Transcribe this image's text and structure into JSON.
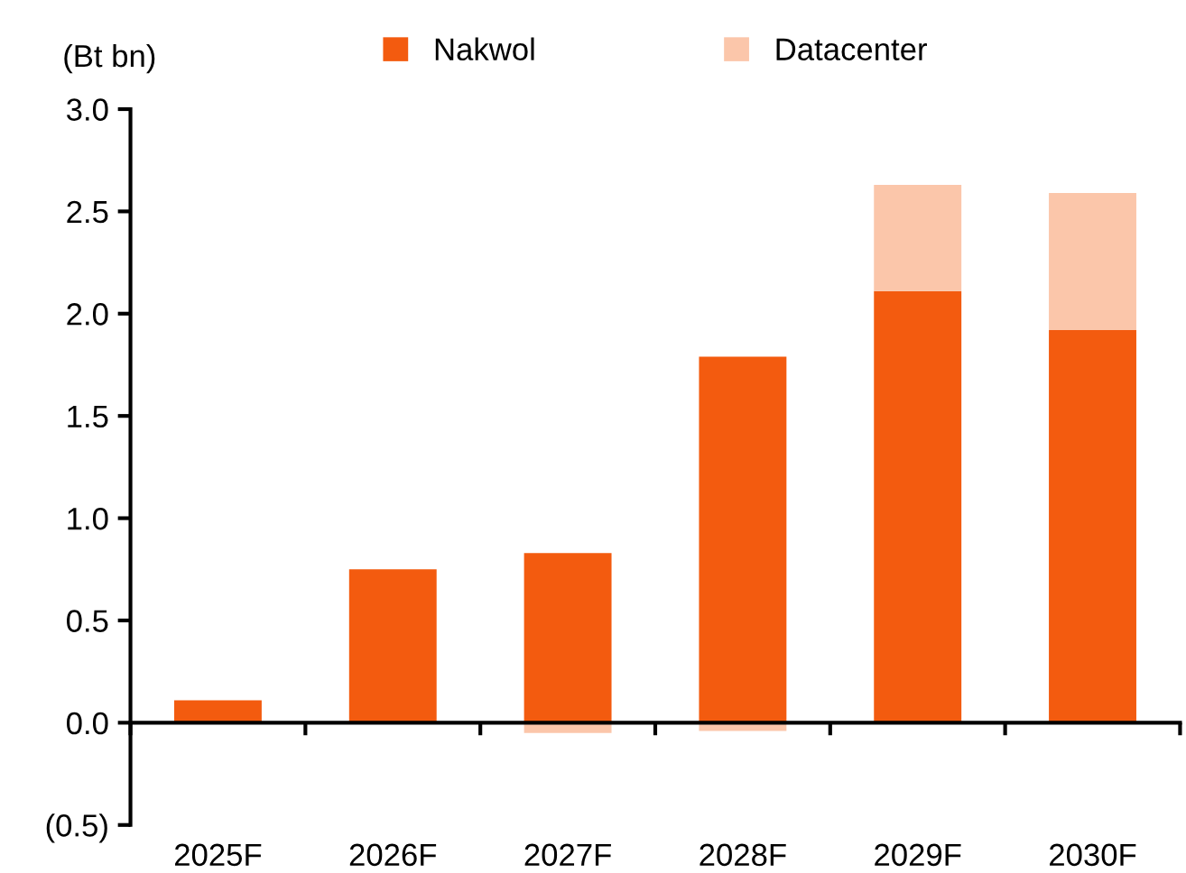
{
  "chart_data": {
    "type": "bar",
    "stacked": true,
    "ylabel": "(Bt bn)",
    "categories": [
      "2025F",
      "2026F",
      "2027F",
      "2028F",
      "2029F",
      "2030F"
    ],
    "series": [
      {
        "name": "Nakwol",
        "color": "#f35b0f",
        "values": [
          0.11,
          0.75,
          0.83,
          1.79,
          2.11,
          1.92
        ]
      },
      {
        "name": "Datacenter",
        "color": "#fbc6aa",
        "values": [
          0,
          0,
          -0.05,
          -0.04,
          0.52,
          0.67
        ]
      }
    ],
    "ylim": [
      -0.5,
      3.0
    ],
    "yticks": [
      {
        "value": -0.5,
        "label": "(0.5)"
      },
      {
        "value": 0,
        "label": "0.0"
      },
      {
        "value": 0.5,
        "label": "0.5"
      },
      {
        "value": 1.0,
        "label": "1.0"
      },
      {
        "value": 1.5,
        "label": "1.5"
      },
      {
        "value": 2.0,
        "label": "2.0"
      },
      {
        "value": 2.5,
        "label": "2.5"
      },
      {
        "value": 3.0,
        "label": "3.0"
      }
    ],
    "legend": "top"
  }
}
